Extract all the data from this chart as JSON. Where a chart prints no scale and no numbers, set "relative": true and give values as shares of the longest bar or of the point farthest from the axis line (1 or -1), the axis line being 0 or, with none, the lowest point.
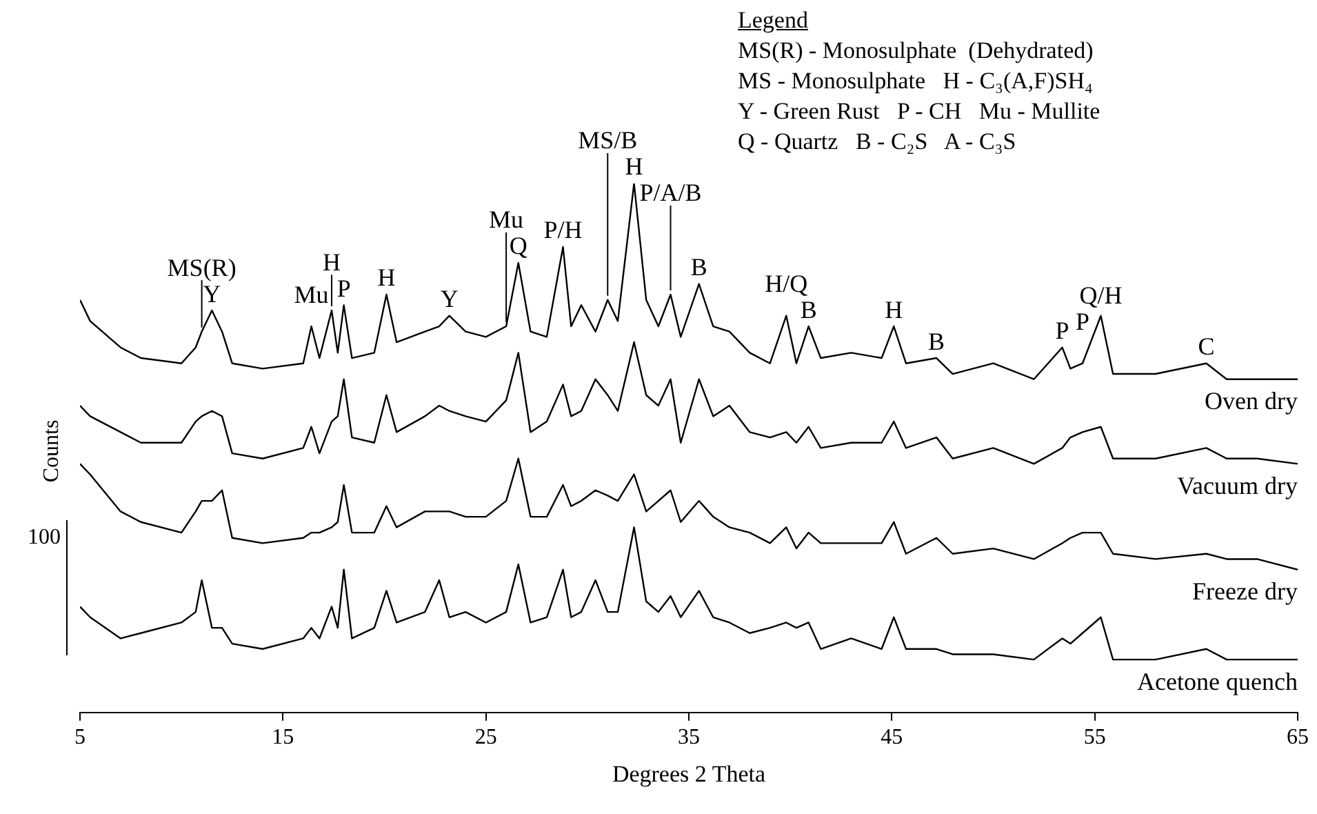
{
  "chart_data": {
    "type": "line",
    "relative": true,
    "xlabel": "Degrees 2 Theta",
    "ylabel": "Counts",
    "legend_title": "Legend",
    "legend": false,
    "grid": false,
    "marker": "none",
    "line_style": "solid",
    "xlim": [
      5,
      65
    ],
    "xticks": [
      5,
      15,
      25,
      35,
      45,
      55,
      65
    ],
    "x": [
      5,
      5.5,
      7,
      8,
      10,
      10.7,
      11.0,
      11.5,
      12,
      12.5,
      14,
      16,
      16.4,
      16.8,
      17.4,
      17.7,
      18,
      18.4,
      19.5,
      20.1,
      20.6,
      22,
      22.7,
      23.2,
      24,
      25,
      26,
      26.6,
      27.2,
      28,
      28.8,
      29.2,
      29.7,
      30.4,
      31,
      31.5,
      32.3,
      32.9,
      33.5,
      34.1,
      34.6,
      35.5,
      36.2,
      37,
      38,
      39,
      39.8,
      40.3,
      40.9,
      41.5,
      43,
      44.5,
      45.1,
      45.7,
      47.2,
      48,
      50,
      52,
      53.4,
      53.8,
      54.4,
      55.3,
      55.9,
      58,
      60.5,
      61.5,
      63,
      65
    ],
    "series": [
      {
        "name": "Oven dry",
        "color": "#000000",
        "values": [
          0.78,
          0.74,
          0.69,
          0.67,
          0.66,
          0.69,
          0.72,
          0.76,
          0.72,
          0.66,
          0.65,
          0.66,
          0.73,
          0.67,
          0.76,
          0.68,
          0.77,
          0.67,
          0.68,
          0.79,
          0.7,
          0.72,
          0.73,
          0.75,
          0.72,
          0.71,
          0.73,
          0.85,
          0.72,
          0.71,
          0.88,
          0.73,
          0.77,
          0.72,
          0.78,
          0.74,
          1.0,
          0.78,
          0.73,
          0.79,
          0.71,
          0.81,
          0.73,
          0.72,
          0.68,
          0.66,
          0.75,
          0.66,
          0.73,
          0.67,
          0.68,
          0.67,
          0.73,
          0.66,
          0.67,
          0.64,
          0.66,
          0.63,
          0.69,
          0.65,
          0.66,
          0.75,
          0.64,
          0.64,
          0.66,
          0.63,
          0.63,
          0.63
        ]
      },
      {
        "name": "Vacuum dry",
        "color": "#000000",
        "values": [
          0.58,
          0.56,
          0.53,
          0.51,
          0.51,
          0.55,
          0.56,
          0.57,
          0.56,
          0.49,
          0.48,
          0.5,
          0.54,
          0.49,
          0.55,
          0.56,
          0.63,
          0.52,
          0.51,
          0.6,
          0.53,
          0.56,
          0.58,
          0.57,
          0.56,
          0.55,
          0.59,
          0.68,
          0.53,
          0.55,
          0.62,
          0.56,
          0.57,
          0.63,
          0.6,
          0.57,
          0.7,
          0.6,
          0.58,
          0.63,
          0.51,
          0.63,
          0.56,
          0.58,
          0.53,
          0.52,
          0.53,
          0.51,
          0.54,
          0.5,
          0.51,
          0.51,
          0.55,
          0.5,
          0.52,
          0.48,
          0.5,
          0.47,
          0.5,
          0.52,
          0.53,
          0.54,
          0.48,
          0.48,
          0.5,
          0.48,
          0.48,
          0.47
        ]
      },
      {
        "name": "Freeze dry",
        "color": "#000000",
        "values": [
          0.47,
          0.45,
          0.38,
          0.36,
          0.34,
          0.38,
          0.4,
          0.4,
          0.42,
          0.33,
          0.32,
          0.33,
          0.34,
          0.34,
          0.35,
          0.36,
          0.43,
          0.34,
          0.34,
          0.39,
          0.35,
          0.38,
          0.38,
          0.38,
          0.37,
          0.37,
          0.4,
          0.48,
          0.37,
          0.37,
          0.43,
          0.39,
          0.4,
          0.42,
          0.41,
          0.4,
          0.45,
          0.38,
          0.4,
          0.42,
          0.36,
          0.4,
          0.37,
          0.35,
          0.34,
          0.32,
          0.35,
          0.31,
          0.34,
          0.32,
          0.32,
          0.32,
          0.36,
          0.3,
          0.33,
          0.3,
          0.31,
          0.29,
          0.32,
          0.33,
          0.34,
          0.34,
          0.3,
          0.29,
          0.3,
          0.29,
          0.29,
          0.27
        ]
      },
      {
        "name": "Acetone quench",
        "color": "#000000",
        "values": [
          0.2,
          0.18,
          0.14,
          0.15,
          0.17,
          0.19,
          0.25,
          0.16,
          0.16,
          0.13,
          0.12,
          0.14,
          0.16,
          0.14,
          0.2,
          0.16,
          0.27,
          0.14,
          0.16,
          0.23,
          0.17,
          0.19,
          0.25,
          0.18,
          0.19,
          0.17,
          0.19,
          0.28,
          0.17,
          0.18,
          0.27,
          0.18,
          0.19,
          0.25,
          0.19,
          0.19,
          0.35,
          0.21,
          0.19,
          0.22,
          0.18,
          0.23,
          0.18,
          0.17,
          0.15,
          0.16,
          0.17,
          0.16,
          0.17,
          0.12,
          0.14,
          0.12,
          0.18,
          0.12,
          0.12,
          0.11,
          0.11,
          0.1,
          0.14,
          0.13,
          0.15,
          0.18,
          0.1,
          0.1,
          0.12,
          0.1,
          0.1,
          0.1
        ]
      }
    ],
    "annotations": [
      "MS(R) - Monosulphate  (Dehydrated)",
      "MS - Monosulphate   H - C₃(A,F)SH₄",
      "Y - Green Rust   P - CH   Mu - Mullite",
      "Q - Quartz   B - C₂S   A - C₃S",
      "100",
      {
        "text": "Y",
        "x": 11.5,
        "y": 0.76
      },
      {
        "text": "MS(R)",
        "x": 11.0,
        "y": 0.72
      },
      {
        "text": "Mu",
        "x": 16.4,
        "y": 0.73
      },
      {
        "text": "P",
        "x": 18,
        "y": 0.77
      },
      {
        "text": "H",
        "x": 17.4,
        "y": 0.76
      },
      {
        "text": "H",
        "x": 20.1,
        "y": 0.79
      },
      {
        "text": "Y",
        "x": 23.2,
        "y": 0.75
      },
      {
        "text": "Q",
        "x": 26.6,
        "y": 0.85
      },
      {
        "text": "Mu",
        "x": 26,
        "y": 0.73
      },
      {
        "text": "P/H",
        "x": 28.8,
        "y": 0.88
      },
      {
        "text": "H",
        "x": 32.3,
        "y": 1.0
      },
      {
        "text": "MS/B",
        "x": 31,
        "y": 0.78
      },
      {
        "text": "B",
        "x": 35.5,
        "y": 0.81
      },
      {
        "text": "P/A/B",
        "x": 34.1,
        "y": 0.79
      },
      {
        "text": "B",
        "x": 40.9,
        "y": 0.73
      },
      {
        "text": "H/Q",
        "x": 39.8,
        "y": 0.75
      },
      {
        "text": "H",
        "x": 45.1,
        "y": 0.73
      },
      {
        "text": "B",
        "x": 47.2,
        "y": 0.67
      },
      {
        "text": "P",
        "x": 53.4,
        "y": 0.69
      },
      {
        "text": "P",
        "x": 54.4,
        "y": 0.66
      },
      {
        "text": "Q/H",
        "x": 55.3,
        "y": 0.75
      },
      {
        "text": "C",
        "x": 60.5,
        "y": 0.66
      }
    ]
  }
}
